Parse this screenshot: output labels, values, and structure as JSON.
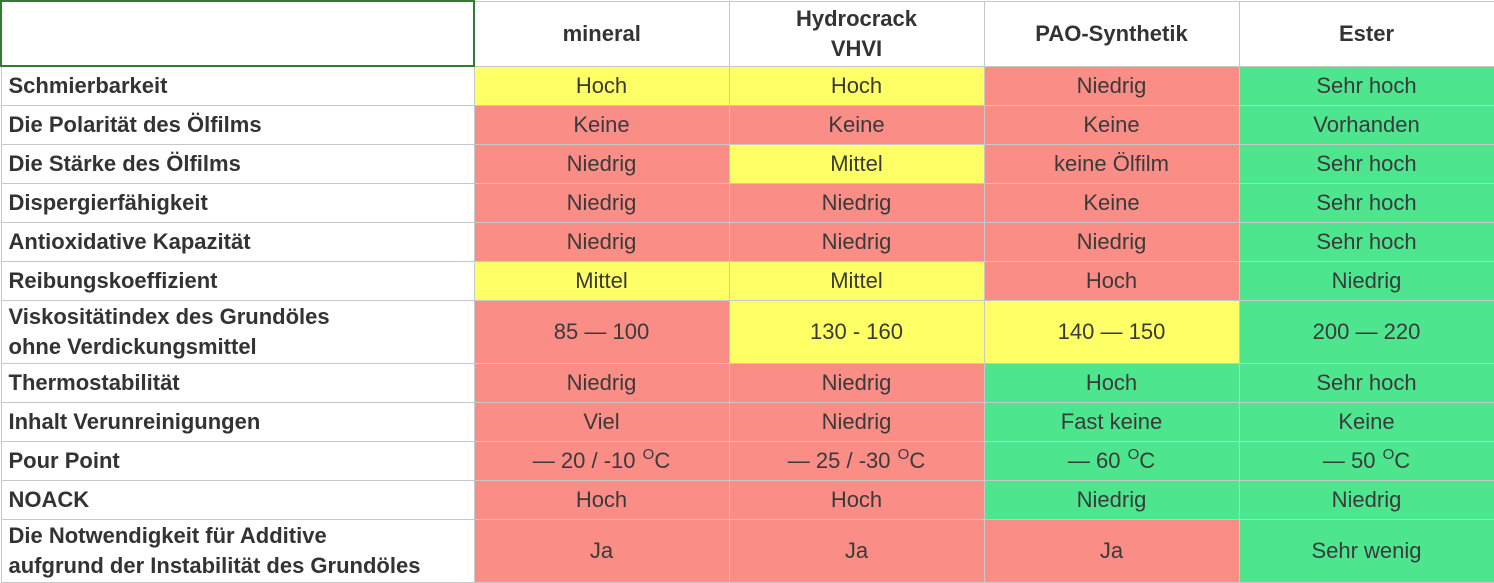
{
  "columns": [
    {
      "name": "mineral"
    },
    {
      "name": "Hydrocrack",
      "name2": "VHVI"
    },
    {
      "name": "PAO-Synthetik"
    },
    {
      "name": "Ester"
    }
  ],
  "colors": {
    "yellow": "#ffff66",
    "red": "#fa8d86",
    "green": "#4de68f"
  },
  "rows": [
    {
      "label": "Schmierbarkeit",
      "cells": [
        {
          "text": "Hoch",
          "color": "yellow"
        },
        {
          "text": "Hoch",
          "color": "yellow"
        },
        {
          "text": "Niedrig",
          "color": "red"
        },
        {
          "text": "Sehr hoch",
          "color": "green"
        }
      ]
    },
    {
      "label": "Die Polarität des Ölfilms",
      "cells": [
        {
          "text": "Keine",
          "color": "red"
        },
        {
          "text": "Keine",
          "color": "red"
        },
        {
          "text": "Keine",
          "color": "red"
        },
        {
          "text": "Vorhanden",
          "color": "green"
        }
      ]
    },
    {
      "label": "Die Stärke des Ölfilms",
      "cells": [
        {
          "text": "Niedrig",
          "color": "red"
        },
        {
          "text": "Mittel",
          "color": "yellow"
        },
        {
          "text": "keine Ölfilm",
          "color": "red"
        },
        {
          "text": "Sehr hoch",
          "color": "green"
        }
      ]
    },
    {
      "label": "Dispergierfähigkeit",
      "cells": [
        {
          "text": "Niedrig",
          "color": "red"
        },
        {
          "text": "Niedrig",
          "color": "red"
        },
        {
          "text": "Keine",
          "color": "red"
        },
        {
          "text": "Sehr hoch",
          "color": "green"
        }
      ]
    },
    {
      "label": "Antioxidative Kapazität",
      "cells": [
        {
          "text": "Niedrig",
          "color": "red"
        },
        {
          "text": "Niedrig",
          "color": "red"
        },
        {
          "text": "Niedrig",
          "color": "red"
        },
        {
          "text": "Sehr hoch",
          "color": "green"
        }
      ]
    },
    {
      "label": "Reibungskoeffizient",
      "cells": [
        {
          "text": "Mittel",
          "color": "yellow"
        },
        {
          "text": "Mittel",
          "color": "yellow"
        },
        {
          "text": "Hoch",
          "color": "red"
        },
        {
          "text": "Niedrig",
          "color": "green"
        }
      ]
    },
    {
      "label": "Viskositätindex des Grundöles",
      "label2": "ohne Verdickungsmittel",
      "cells": [
        {
          "text": "85 — 100",
          "color": "red"
        },
        {
          "text": "130 - 160",
          "color": "yellow"
        },
        {
          "text": "140 — 150",
          "color": "yellow"
        },
        {
          "text": "200 — 220",
          "color": "green"
        }
      ]
    },
    {
      "label": "Thermostabilität",
      "cells": [
        {
          "text": "Niedrig",
          "color": "red"
        },
        {
          "text": "Niedrig",
          "color": "red"
        },
        {
          "text": "Hoch",
          "color": "green"
        },
        {
          "text": "Sehr hoch",
          "color": "green"
        }
      ]
    },
    {
      "label": "Inhalt Verunreinigungen",
      "cells": [
        {
          "text": "Viel",
          "color": "red"
        },
        {
          "text": "Niedrig",
          "color": "red"
        },
        {
          "text": "Fast keine",
          "color": "green"
        },
        {
          "text": "Keine",
          "color": "green"
        }
      ]
    },
    {
      "label": "Pour Point",
      "cells": [
        {
          "text": "— 20 / -10 ",
          "sup": "O",
          "unit": "C",
          "color": "red"
        },
        {
          "text": "— 25 / -30 ",
          "sup": "O",
          "unit": "C",
          "color": "red"
        },
        {
          "text": "— 60 ",
          "sup": "O",
          "unit": "C",
          "color": "green"
        },
        {
          "text": "— 50 ",
          "sup": "O",
          "unit": "C",
          "color": "green"
        }
      ]
    },
    {
      "label": "NOACK",
      "cells": [
        {
          "text": "Hoch",
          "color": "red"
        },
        {
          "text": "Hoch",
          "color": "red"
        },
        {
          "text": "Niedrig",
          "color": "green"
        },
        {
          "text": "Niedrig",
          "color": "green"
        }
      ]
    },
    {
      "label": "Die Notwendigkeit für Additive",
      "label2": "aufgrund der Instabilität des Grundöles",
      "cells": [
        {
          "text": "Ja",
          "color": "red"
        },
        {
          "text": "Ja",
          "color": "red"
        },
        {
          "text": "Ja",
          "color": "red"
        },
        {
          "text": "Sehr wenig",
          "color": "green"
        }
      ]
    }
  ]
}
